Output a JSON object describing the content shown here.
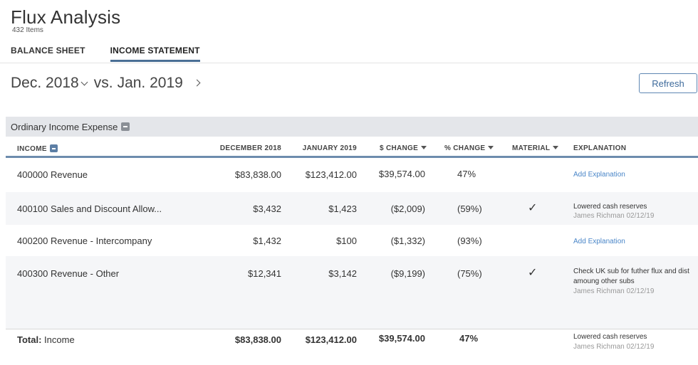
{
  "header": {
    "title": "Flux Analysis",
    "count": "432 Items"
  },
  "tabs": [
    {
      "label": "BALANCE SHEET",
      "active": false
    },
    {
      "label": "INCOME STATEMENT",
      "active": true
    }
  ],
  "period": {
    "from": "Dec. 2018",
    "vs": "vs.",
    "to": "Jan. 2019"
  },
  "toolbar": {
    "refresh_label": "Refresh"
  },
  "section": {
    "title": "Ordinary Income Expense"
  },
  "columns": {
    "income": "INCOME",
    "dec": "DECEMBER 2018",
    "jan": "JANUARY 2019",
    "dchange": "$ CHANGE",
    "pchange": "% CHANGE",
    "material": "MATERIAL",
    "explanation": "EXPLANATION"
  },
  "rows": [
    {
      "account": "400000 Revenue",
      "dec": "$83,838.00",
      "jan": "$123,412.00",
      "dchange": "$39,574.00",
      "pchange": "47%",
      "material": "",
      "explanation": "",
      "add_label": "Add Explanation",
      "author": ""
    },
    {
      "account": "400100 Sales and Discount Allow...",
      "dec": "$3,432",
      "jan": "$1,423",
      "dchange": "($2,009)",
      "pchange": "(59%)",
      "material": "✓",
      "explanation": "Lowered cash reserves",
      "add_label": "",
      "author": "James Richman 02/12/19"
    },
    {
      "account": "400200 Revenue - Intercompany",
      "dec": "$1,432",
      "jan": "$100",
      "dchange": "($1,332)",
      "pchange": "(93%)",
      "material": "",
      "explanation": "",
      "add_label": "Add Explanation",
      "author": ""
    },
    {
      "account": "400300 Revenue - Other",
      "dec": "$12,341",
      "jan": "$3,142",
      "dchange": "($9,199)",
      "pchange": "(75%)",
      "material": "✓",
      "explanation_line1": "Check UK sub for futher flux and dist",
      "explanation_line2": "amoung other subs",
      "add_label": "",
      "author": "James Richman 02/12/19"
    }
  ],
  "total": {
    "label": "Total:",
    "name": "Income",
    "dec": "$83,838.00",
    "jan": "$123,412.00",
    "dchange": "$39,574.00",
    "pchange": "47%",
    "explanation": "Lowered cash reserves",
    "author": "James Richman 02/12/19"
  }
}
